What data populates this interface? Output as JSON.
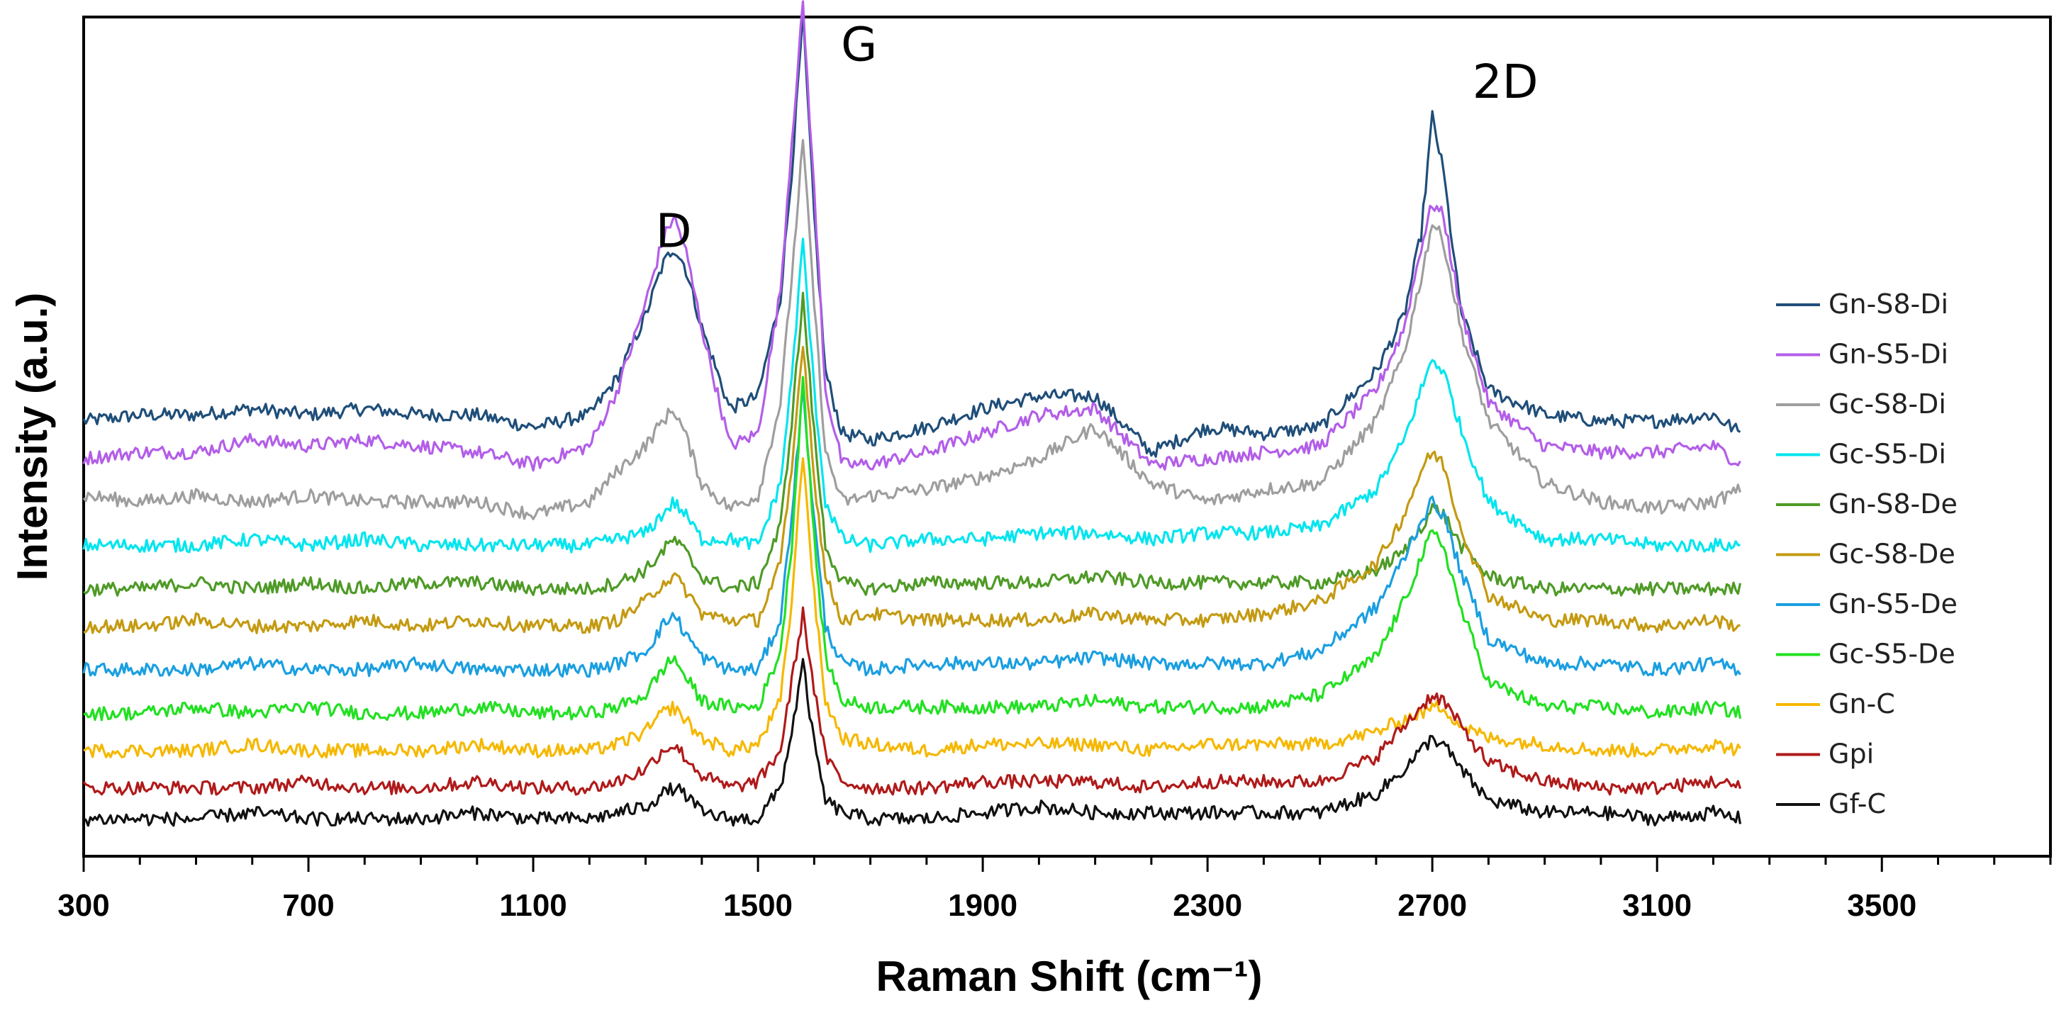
{
  "chart_data": {
    "type": "line",
    "title": "",
    "xlabel": "Raman Shift (cm⁻¹)",
    "ylabel": "Intensity (a.u.)",
    "xlim": [
      300,
      3800
    ],
    "ylim": [
      -0.5,
      13.0
    ],
    "yticks_shown": false,
    "xticks": [
      300,
      700,
      1100,
      1500,
      1900,
      2300,
      2700,
      3100,
      3500
    ],
    "xtick_labels": [
      "300",
      "700",
      "1100",
      "1500",
      "1900",
      "2300",
      "2700",
      "3100",
      "3500"
    ],
    "legend_position": "right",
    "annotations": [
      {
        "text": "D",
        "x": 1350,
        "y": 9.3
      },
      {
        "text": "G",
        "x": 1680,
        "y": 12.3
      },
      {
        "text": "2D",
        "x": 2830,
        "y": 11.7
      }
    ],
    "x": [
      300,
      400,
      500,
      600,
      700,
      800,
      900,
      1000,
      1100,
      1200,
      1250,
      1300,
      1330,
      1350,
      1370,
      1400,
      1450,
      1500,
      1540,
      1560,
      1580,
      1600,
      1620,
      1650,
      1700,
      1800,
      1900,
      2000,
      2100,
      2200,
      2300,
      2400,
      2500,
      2600,
      2650,
      2680,
      2700,
      2720,
      2750,
      2800,
      2900,
      3000,
      3100,
      3200,
      3250
    ],
    "series": [
      {
        "name": "Gn-S8-Di",
        "color": "#1f4e79",
        "values": [
          6.5,
          6.6,
          6.6,
          6.7,
          6.6,
          6.7,
          6.6,
          6.6,
          6.4,
          6.6,
          7.2,
          8.2,
          9.0,
          9.3,
          9.0,
          8.0,
          6.7,
          6.9,
          8.5,
          10.5,
          13.0,
          9.8,
          7.3,
          6.3,
          6.2,
          6.4,
          6.7,
          6.9,
          6.9,
          6.0,
          6.4,
          6.3,
          6.4,
          7.3,
          8.2,
          9.5,
          11.4,
          10.5,
          8.3,
          7.0,
          6.6,
          6.5,
          6.5,
          6.6,
          6.3
        ]
      },
      {
        "name": "Gn-S5-Di",
        "color": "#b35ee8",
        "values": [
          5.9,
          6.0,
          6.0,
          6.2,
          6.1,
          6.2,
          6.1,
          6.0,
          5.8,
          6.1,
          7.0,
          8.4,
          9.4,
          9.8,
          9.3,
          8.0,
          6.1,
          6.3,
          8.6,
          11.0,
          13.2,
          10.2,
          7.0,
          5.8,
          5.8,
          6.0,
          6.3,
          6.6,
          6.7,
          5.8,
          5.9,
          6.0,
          6.1,
          7.0,
          8.0,
          9.3,
          10.0,
          9.8,
          8.3,
          6.8,
          6.1,
          6.0,
          6.0,
          6.1,
          5.8
        ]
      },
      {
        "name": "Gc-S8-Di",
        "color": "#9e9e9e",
        "values": [
          5.3,
          5.2,
          5.3,
          5.2,
          5.3,
          5.2,
          5.2,
          5.2,
          5.0,
          5.2,
          5.7,
          6.1,
          6.5,
          6.7,
          6.3,
          5.5,
          5.1,
          5.3,
          6.8,
          8.8,
          11.0,
          8.4,
          6.0,
          5.2,
          5.3,
          5.4,
          5.6,
          5.9,
          6.4,
          5.5,
          5.2,
          5.4,
          5.5,
          6.5,
          7.6,
          8.8,
          9.7,
          9.4,
          8.0,
          6.5,
          5.5,
          5.2,
          5.1,
          5.2,
          5.4
        ]
      },
      {
        "name": "Gc-S5-Di",
        "color": "#00e5ee",
        "values": [
          4.5,
          4.5,
          4.5,
          4.6,
          4.5,
          4.6,
          4.5,
          4.5,
          4.5,
          4.5,
          4.6,
          4.7,
          5.0,
          5.2,
          5.0,
          4.6,
          4.6,
          4.5,
          5.5,
          7.2,
          9.4,
          7.0,
          5.2,
          4.6,
          4.5,
          4.6,
          4.6,
          4.7,
          4.7,
          4.6,
          4.7,
          4.7,
          4.8,
          5.4,
          6.2,
          7.0,
          7.5,
          7.3,
          6.4,
          5.2,
          4.6,
          4.6,
          4.5,
          4.5,
          4.5
        ]
      },
      {
        "name": "Gn-S8-De",
        "color": "#4e9a26",
        "values": [
          3.8,
          3.8,
          3.9,
          3.8,
          3.9,
          3.8,
          3.9,
          3.9,
          3.8,
          3.8,
          3.9,
          4.1,
          4.4,
          4.6,
          4.4,
          4.0,
          3.8,
          3.9,
          4.8,
          6.5,
          8.5,
          6.3,
          4.5,
          3.9,
          3.8,
          3.9,
          3.9,
          3.9,
          4.0,
          3.9,
          3.9,
          3.9,
          3.9,
          4.1,
          4.4,
          4.8,
          5.1,
          5.0,
          4.5,
          4.0,
          3.8,
          3.8,
          3.8,
          3.8,
          3.8
        ]
      },
      {
        "name": "Gc-S8-De",
        "color": "#c49a11",
        "values": [
          3.2,
          3.2,
          3.3,
          3.2,
          3.2,
          3.3,
          3.2,
          3.3,
          3.2,
          3.2,
          3.3,
          3.6,
          3.9,
          4.0,
          3.8,
          3.4,
          3.3,
          3.3,
          4.2,
          5.7,
          7.8,
          5.6,
          4.0,
          3.3,
          3.4,
          3.3,
          3.3,
          3.3,
          3.4,
          3.3,
          3.3,
          3.4,
          3.6,
          4.2,
          5.0,
          5.7,
          6.0,
          5.8,
          4.8,
          3.7,
          3.3,
          3.3,
          3.2,
          3.3,
          3.2
        ]
      },
      {
        "name": "Gn-S5-De",
        "color": "#1a9fe0",
        "values": [
          2.5,
          2.5,
          2.5,
          2.6,
          2.5,
          2.5,
          2.6,
          2.5,
          2.5,
          2.5,
          2.6,
          2.8,
          3.2,
          3.4,
          3.1,
          2.7,
          2.5,
          2.5,
          3.3,
          5.0,
          7.0,
          4.9,
          3.2,
          2.6,
          2.5,
          2.6,
          2.6,
          2.6,
          2.7,
          2.6,
          2.6,
          2.6,
          2.8,
          3.5,
          4.3,
          4.9,
          5.2,
          5.0,
          4.1,
          3.0,
          2.6,
          2.6,
          2.5,
          2.6,
          2.5
        ]
      },
      {
        "name": "Gc-S5-De",
        "color": "#22e022",
        "values": [
          1.8,
          1.8,
          1.9,
          1.8,
          1.9,
          1.8,
          1.8,
          1.9,
          1.8,
          1.8,
          1.9,
          2.1,
          2.5,
          2.7,
          2.4,
          2.0,
          1.9,
          1.9,
          2.8,
          4.5,
          7.2,
          4.6,
          2.7,
          2.0,
          1.9,
          1.9,
          1.9,
          1.9,
          2.0,
          1.9,
          1.9,
          1.9,
          2.1,
          2.7,
          3.6,
          4.3,
          4.7,
          4.5,
          3.5,
          2.3,
          1.9,
          1.9,
          1.8,
          1.9,
          1.8
        ]
      },
      {
        "name": "Gn-C",
        "color": "#f5b800",
        "values": [
          1.2,
          1.2,
          1.2,
          1.3,
          1.2,
          1.2,
          1.2,
          1.3,
          1.2,
          1.2,
          1.3,
          1.5,
          1.8,
          1.9,
          1.7,
          1.4,
          1.2,
          1.3,
          2.0,
          3.6,
          6.0,
          3.7,
          2.0,
          1.4,
          1.3,
          1.2,
          1.3,
          1.3,
          1.3,
          1.2,
          1.3,
          1.3,
          1.3,
          1.5,
          1.7,
          1.8,
          1.9,
          1.9,
          1.6,
          1.4,
          1.3,
          1.2,
          1.2,
          1.3,
          1.2
        ]
      },
      {
        "name": "Gpi",
        "color": "#b01a1a",
        "values": [
          0.6,
          0.6,
          0.6,
          0.6,
          0.7,
          0.6,
          0.6,
          0.7,
          0.6,
          0.6,
          0.7,
          0.9,
          1.2,
          1.3,
          1.1,
          0.8,
          0.6,
          0.7,
          1.2,
          2.3,
          3.4,
          2.2,
          1.1,
          0.7,
          0.6,
          0.6,
          0.7,
          0.7,
          0.7,
          0.6,
          0.7,
          0.7,
          0.7,
          1.1,
          1.6,
          1.9,
          2.1,
          2.0,
          1.6,
          1.0,
          0.7,
          0.6,
          0.6,
          0.7,
          0.6
        ]
      },
      {
        "name": "Gf-C",
        "color": "#111111",
        "values": [
          0.1,
          0.1,
          0.1,
          0.2,
          0.1,
          0.1,
          0.1,
          0.2,
          0.1,
          0.1,
          0.2,
          0.3,
          0.5,
          0.6,
          0.5,
          0.2,
          0.1,
          0.1,
          0.6,
          1.5,
          2.6,
          1.3,
          0.4,
          0.2,
          0.1,
          0.1,
          0.2,
          0.3,
          0.2,
          0.2,
          0.2,
          0.2,
          0.2,
          0.5,
          0.9,
          1.2,
          1.4,
          1.3,
          0.9,
          0.4,
          0.2,
          0.2,
          0.1,
          0.2,
          0.1
        ]
      }
    ]
  }
}
